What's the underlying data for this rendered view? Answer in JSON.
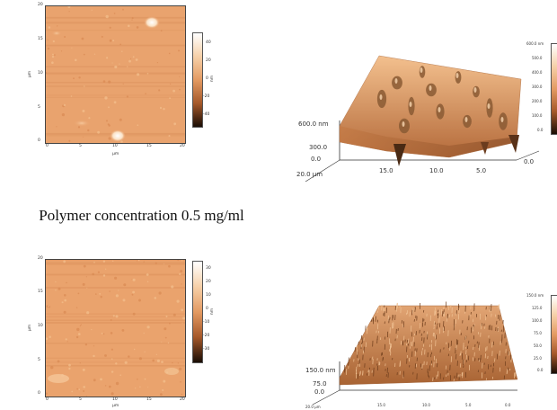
{
  "panels": [
    {
      "id": "top",
      "map2d": {
        "axis_unit": "µm",
        "x_ticks": [
          "0",
          "5",
          "10",
          "15",
          "20"
        ],
        "y_ticks": [
          "20",
          "15",
          "10",
          "5",
          "0"
        ],
        "colorbar_ticks": [
          "40",
          "20",
          "0",
          "-20",
          "-40"
        ],
        "colorbar_unit": "nm"
      },
      "view3d": {
        "z_labels": [
          "600.0 nm",
          "300.0",
          "0.0"
        ],
        "x_labels": [
          "20.0 µm",
          "15.0",
          "10.0",
          "5.0",
          "0.0"
        ],
        "colorbar_ticks": [
          "600.0 nm",
          "500.0",
          "400.0",
          "300.0",
          "200.0",
          "100.0",
          "0.0"
        ]
      }
    },
    {
      "id": "bottom",
      "map2d": {
        "axis_unit": "µm",
        "x_ticks": [
          "0",
          "5",
          "10",
          "15",
          "20"
        ],
        "y_ticks": [
          "20",
          "15",
          "10",
          "5",
          "0"
        ],
        "colorbar_ticks": [
          "30",
          "20",
          "10",
          "0",
          "-10",
          "-20",
          "-30"
        ],
        "colorbar_unit": "nm"
      },
      "view3d": {
        "z_labels": [
          "150.0 nm",
          "75.0",
          "0.0"
        ],
        "x_labels": [
          "20.0 µm",
          "15.0",
          "10.0",
          "5.0",
          "0.0"
        ],
        "colorbar_ticks": [
          "150.0 nm",
          "125.0",
          "100.0",
          "75.0",
          "50.0",
          "25.0",
          "0.0"
        ]
      }
    }
  ],
  "caption": "Polymer concentration 0.5 mg/ml",
  "colors": {
    "afm_base": "#e8a06a",
    "afm_light": "#f7d2a8",
    "afm_dark": "#b46a3a"
  }
}
